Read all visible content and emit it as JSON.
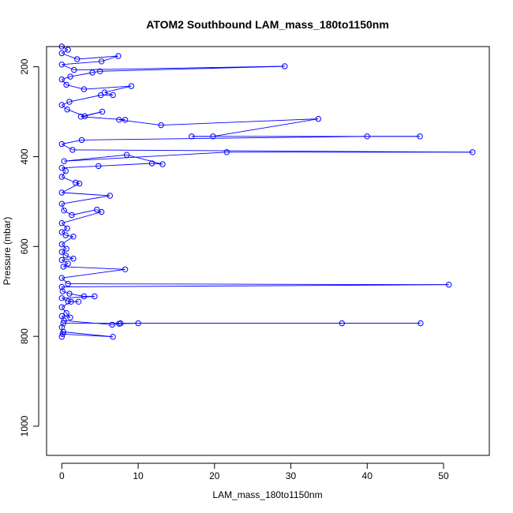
{
  "chart_data": {
    "type": "scatter",
    "title": "ATOM2 Southbound LAM_mass_180to1150nm",
    "xlabel": "LAM_mass_180to1150nm",
    "ylabel": "Pressure (mbar)",
    "xlim": [
      -2,
      56
    ],
    "ylim": [
      1065,
      155
    ],
    "y_reversed": true,
    "x_ticks": [
      0,
      10,
      20,
      30,
      40,
      50
    ],
    "y_ticks": [
      200,
      400,
      600,
      800,
      1000
    ],
    "grid": false,
    "connected": true,
    "series_color": "#0000ff",
    "series": [
      {
        "values": [
          [
            0,
            801
          ],
          [
            0.2,
            790
          ],
          [
            6.7,
            801
          ],
          [
            0.1,
            795
          ],
          [
            0,
            780
          ],
          [
            0.2,
            771
          ],
          [
            7.7,
            771
          ],
          [
            36.7,
            771
          ],
          [
            47.0,
            771
          ],
          [
            10.0,
            771
          ],
          [
            7.5,
            772
          ],
          [
            6.6,
            774
          ],
          [
            0.3,
            765
          ],
          [
            0,
            755
          ],
          [
            1.1,
            758
          ],
          [
            0.6,
            748
          ],
          [
            0,
            735
          ],
          [
            1.2,
            723
          ],
          [
            2.2,
            723
          ],
          [
            0.8,
            722
          ],
          [
            0,
            715
          ],
          [
            4.3,
            711
          ],
          [
            2.9,
            711
          ],
          [
            1.0,
            705
          ],
          [
            0.1,
            700
          ],
          [
            0,
            690
          ],
          [
            50.7,
            685
          ],
          [
            0.8,
            683
          ],
          [
            0,
            670
          ],
          [
            8.3,
            651
          ],
          [
            0.2,
            645
          ],
          [
            0.8,
            638
          ],
          [
            0,
            630
          ],
          [
            1.5,
            627
          ],
          [
            0.5,
            620
          ],
          [
            0,
            612
          ],
          [
            0.6,
            605
          ],
          [
            0,
            595
          ],
          [
            1.5,
            578
          ],
          [
            0.5,
            575
          ],
          [
            0,
            568
          ],
          [
            0.7,
            560
          ],
          [
            0,
            548
          ],
          [
            5.2,
            523
          ],
          [
            4.6,
            518
          ],
          [
            1.3,
            530
          ],
          [
            0.3,
            520
          ],
          [
            0,
            505
          ],
          [
            6.3,
            487
          ],
          [
            0,
            480
          ],
          [
            2.3,
            460
          ],
          [
            1.8,
            458
          ],
          [
            0,
            445
          ],
          [
            0.5,
            432
          ],
          [
            0,
            425
          ],
          [
            4.8,
            421
          ],
          [
            11.8,
            415
          ],
          [
            13.2,
            417
          ],
          [
            8.5,
            396
          ],
          [
            0.3,
            410
          ],
          [
            21.6,
            390
          ],
          [
            53.8,
            390
          ],
          [
            1.4,
            385
          ],
          [
            0,
            372
          ],
          [
            2.6,
            363
          ],
          [
            40.0,
            355
          ],
          [
            46.9,
            355
          ],
          [
            17.0,
            355
          ],
          [
            19.8,
            355
          ],
          [
            33.6,
            316
          ],
          [
            13.0,
            330
          ],
          [
            7.5,
            318
          ],
          [
            8.3,
            318
          ],
          [
            2.5,
            311
          ],
          [
            5.3,
            300
          ],
          [
            3.0,
            310
          ],
          [
            0.7,
            295
          ],
          [
            0,
            285
          ],
          [
            1.0,
            278
          ],
          [
            5.1,
            263
          ],
          [
            6.7,
            263
          ],
          [
            5.6,
            257
          ],
          [
            9.1,
            243
          ],
          [
            2.9,
            250
          ],
          [
            0.6,
            240
          ],
          [
            0,
            228
          ],
          [
            1.1,
            222
          ],
          [
            4.0,
            213
          ],
          [
            5.0,
            210
          ],
          [
            29.2,
            199
          ],
          [
            1.6,
            207
          ],
          [
            0,
            195
          ],
          [
            5.2,
            188
          ],
          [
            7.4,
            176
          ],
          [
            2.0,
            183
          ],
          [
            0,
            170
          ],
          [
            0.8,
            162
          ],
          [
            0,
            155
          ]
        ]
      }
    ]
  }
}
